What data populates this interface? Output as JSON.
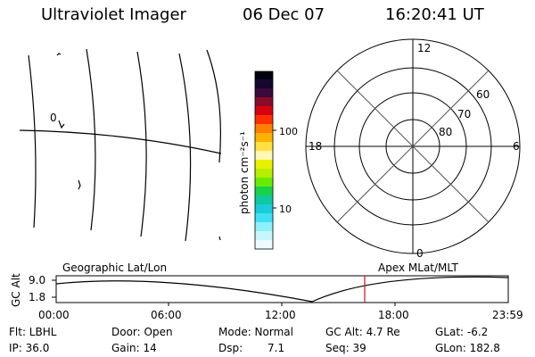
{
  "header": {
    "title": "Ultraviolet Imager",
    "date": "06 Dec 07",
    "time": "16:20:41 UT"
  },
  "geo_map": {
    "lat_label": "0"
  },
  "colorbar": {
    "unit_label": "photon cm⁻²s⁻¹",
    "ticks": [
      "100",
      "10"
    ]
  },
  "polar_plot": {
    "mlt_labels": [
      "12",
      "18",
      "6",
      "0"
    ],
    "lat_labels": [
      "60",
      "70",
      "80"
    ]
  },
  "timeline": {
    "ylabel": "GC Alt",
    "yticks": [
      "9.0",
      "1.8"
    ],
    "left_label": "Geographic Lat/Lon",
    "right_label": "Apex MLat/MLT",
    "xticks": [
      "00:00",
      "06:00",
      "12:00",
      "18:00",
      "23:59"
    ],
    "current_marker": "16:20:41"
  },
  "info": {
    "flt": "Flt: LBHL",
    "ip": "IP: 36.0",
    "door": "Door: Open",
    "gain": "Gain: 14",
    "mode": "Mode: Normal",
    "dsp_label": "Dsp:",
    "dsp_value": "7.1",
    "gc_alt": "GC Alt: 4.7 Re",
    "seq": "Seq: 39",
    "glat": "GLat:  -6.2",
    "glon": "GLon: 182.8"
  }
}
